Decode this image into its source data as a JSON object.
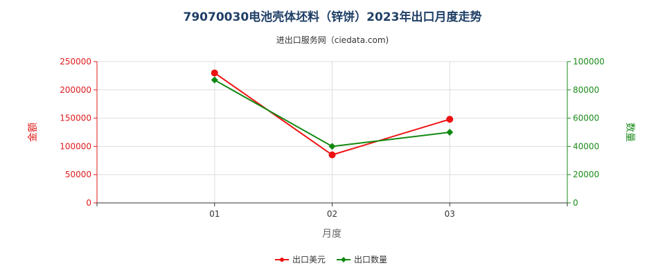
{
  "chart_data": {
    "type": "line",
    "title": "79070030电池壳体坯料（锌饼）2023年出口月度走势",
    "subtitle": "进出口服务网（ciedata.com)",
    "xlabel": "月度",
    "categories": [
      "01",
      "02",
      "03"
    ],
    "y_left": {
      "label": "金额",
      "ylim": [
        0,
        250000
      ],
      "ticks": [
        0,
        50000,
        100000,
        150000,
        200000,
        250000
      ],
      "color": "#e0191a"
    },
    "y_right": {
      "label": "数量",
      "ylim": [
        0,
        100000
      ],
      "ticks": [
        0,
        20000,
        40000,
        60000,
        80000,
        100000
      ],
      "color": "#1a8a1a"
    },
    "series": [
      {
        "name": "出口美元",
        "axis": "left",
        "color": "#ee1111",
        "values": [
          230000,
          85000,
          148000
        ]
      },
      {
        "name": "出口数量",
        "axis": "right",
        "color": "#118811",
        "values": [
          87000,
          40000,
          50000
        ]
      }
    ],
    "grid": true,
    "legend_position": "bottom"
  }
}
